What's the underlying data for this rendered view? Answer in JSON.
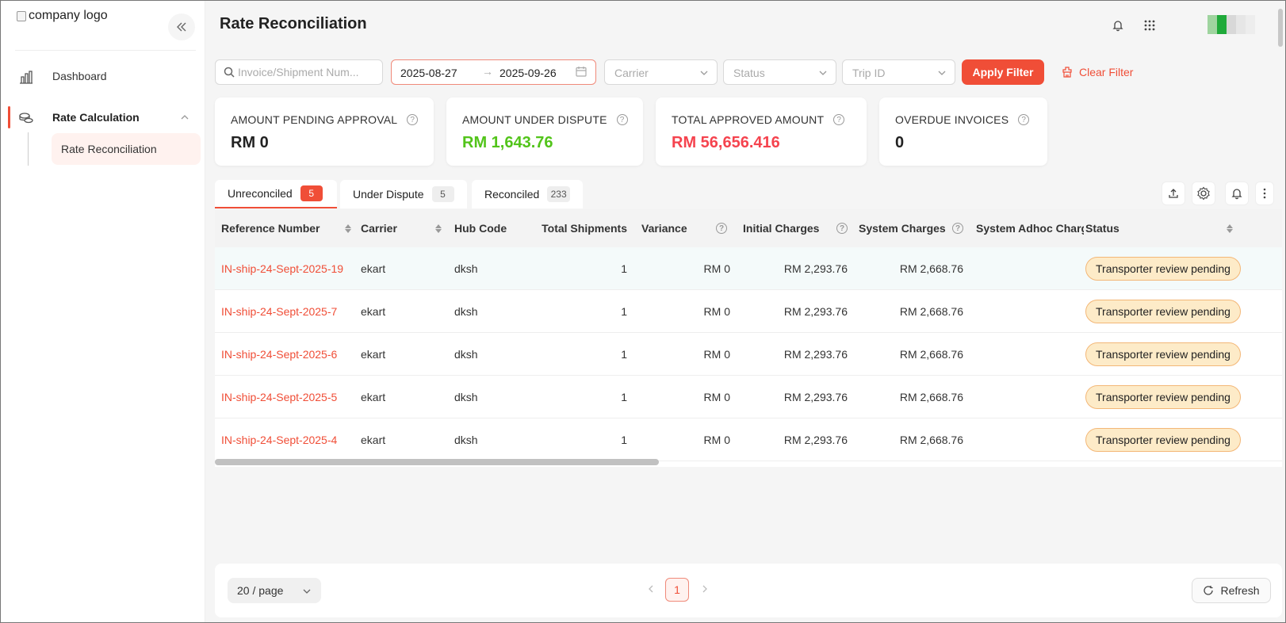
{
  "sidebar": {
    "logo_alt": "company logo",
    "items": [
      {
        "label": "Dashboard",
        "icon": "bar-chart-icon"
      },
      {
        "label": "Rate Calculation",
        "icon": "coins-icon",
        "expanded": true
      }
    ],
    "sub_items": [
      {
        "label": "Rate Reconciliation",
        "active": true
      }
    ]
  },
  "header": {
    "title": "Rate Reconciliation"
  },
  "filters": {
    "search_placeholder": "Invoice/Shipment Num...",
    "date_from": "2025-08-27",
    "date_to": "2025-09-26",
    "carrier_placeholder": "Carrier",
    "status_placeholder": "Status",
    "trip_placeholder": "Trip ID",
    "apply_label": "Apply Filter",
    "clear_label": "Clear Filter"
  },
  "stats": [
    {
      "title": "AMOUNT PENDING APPROVAL",
      "value": "RM 0",
      "color": "#222222"
    },
    {
      "title": "AMOUNT UNDER DISPUTE",
      "value": "RM 1,643.76",
      "color": "#52c41a"
    },
    {
      "title": "TOTAL APPROVED AMOUNT",
      "value": "RM 56,656.416",
      "color": "#f5434e"
    },
    {
      "title": "OVERDUE INVOICES",
      "value": "0",
      "color": "#222222"
    }
  ],
  "tabs": [
    {
      "label": "Unreconciled",
      "count": "5",
      "active": true
    },
    {
      "label": "Under Dispute",
      "count": "5"
    },
    {
      "label": "Reconciled",
      "count": "233"
    }
  ],
  "table": {
    "columns": [
      "Reference Number",
      "Carrier",
      "Hub Code",
      "Total Shipments",
      "Variance",
      "Initial Charges",
      "System Charges",
      "System Adhoc Charge",
      "Status"
    ],
    "rows": [
      {
        "ref": "IN-ship-24-Sept-2025-19",
        "carrier": "ekart",
        "hub": "dksh",
        "shipments": "1",
        "variance": "RM 0",
        "initial": "RM 2,293.76",
        "system": "RM 2,668.76",
        "adhoc": "",
        "status": "Transporter review pending"
      },
      {
        "ref": "IN-ship-24-Sept-2025-7",
        "carrier": "ekart",
        "hub": "dksh",
        "shipments": "1",
        "variance": "RM 0",
        "initial": "RM 2,293.76",
        "system": "RM 2,668.76",
        "adhoc": "",
        "status": "Transporter review pending"
      },
      {
        "ref": "IN-ship-24-Sept-2025-6",
        "carrier": "ekart",
        "hub": "dksh",
        "shipments": "1",
        "variance": "RM 0",
        "initial": "RM 2,293.76",
        "system": "RM 2,668.76",
        "adhoc": "",
        "status": "Transporter review pending"
      },
      {
        "ref": "IN-ship-24-Sept-2025-5",
        "carrier": "ekart",
        "hub": "dksh",
        "shipments": "1",
        "variance": "RM 0",
        "initial": "RM 2,293.76",
        "system": "RM 2,668.76",
        "adhoc": "",
        "status": "Transporter review pending"
      },
      {
        "ref": "IN-ship-24-Sept-2025-4",
        "carrier": "ekart",
        "hub": "dksh",
        "shipments": "1",
        "variance": "RM 0",
        "initial": "RM 2,293.76",
        "system": "RM 2,668.76",
        "adhoc": "",
        "status": "Transporter review pending"
      }
    ]
  },
  "pagination": {
    "page_size": "20 / page",
    "current_page": "1",
    "refresh_label": "Refresh"
  },
  "colors": {
    "accent": "#f04e37",
    "pill_bg": "#fdebc8",
    "pill_border": "#f3b777"
  }
}
